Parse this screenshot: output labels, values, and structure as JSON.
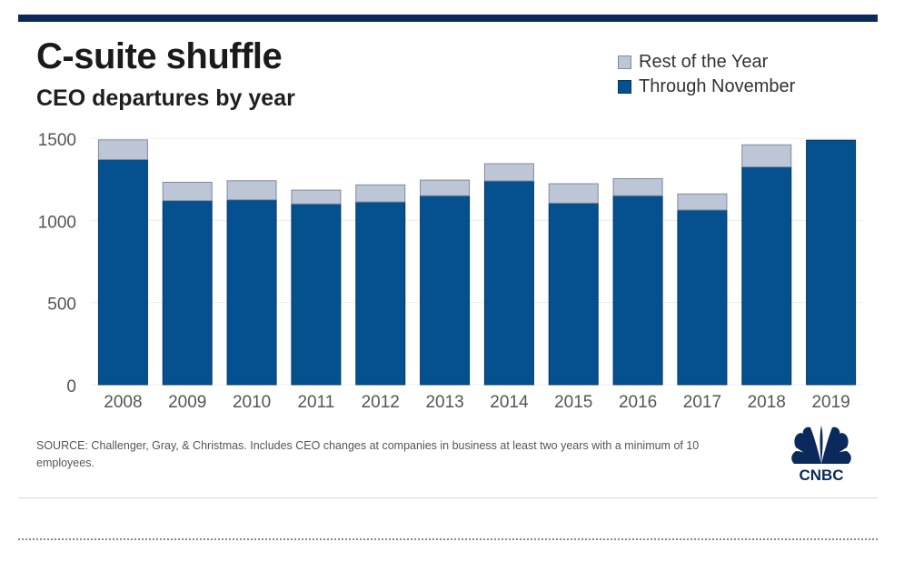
{
  "title": "C-suite shuffle",
  "subtitle": "CEO departures by year",
  "legend": {
    "rest": "Rest of the Year",
    "through": "Through November"
  },
  "source": "SOURCE: Challenger, Gray, & Christmas. Includes CEO changes at companies in business at least two years with a minimum of 10 employees.",
  "logo": {
    "text": "CNBC",
    "icon": "peacock-logo-icon"
  },
  "colors": {
    "through": "#05508f",
    "rest": "#bcc6d6",
    "rule": "#0b2a5b"
  },
  "chart_data": {
    "type": "bar",
    "stacked": true,
    "categories": [
      "2008",
      "2009",
      "2010",
      "2011",
      "2012",
      "2013",
      "2014",
      "2015",
      "2016",
      "2017",
      "2018",
      "2019"
    ],
    "series": [
      {
        "name": "Through November",
        "values": [
          1370,
          1120,
          1125,
          1100,
          1112,
          1150,
          1240,
          1105,
          1150,
          1063,
          1325,
          1488
        ]
      },
      {
        "name": "Rest of the Year",
        "values": [
          120,
          112,
          116,
          84,
          104,
          95,
          105,
          118,
          104,
          98,
          135,
          0
        ]
      }
    ],
    "yticks": [
      0,
      500,
      1000,
      1500
    ],
    "ylim": [
      0,
      1500
    ],
    "grid": true,
    "legend_position": "top-right"
  }
}
